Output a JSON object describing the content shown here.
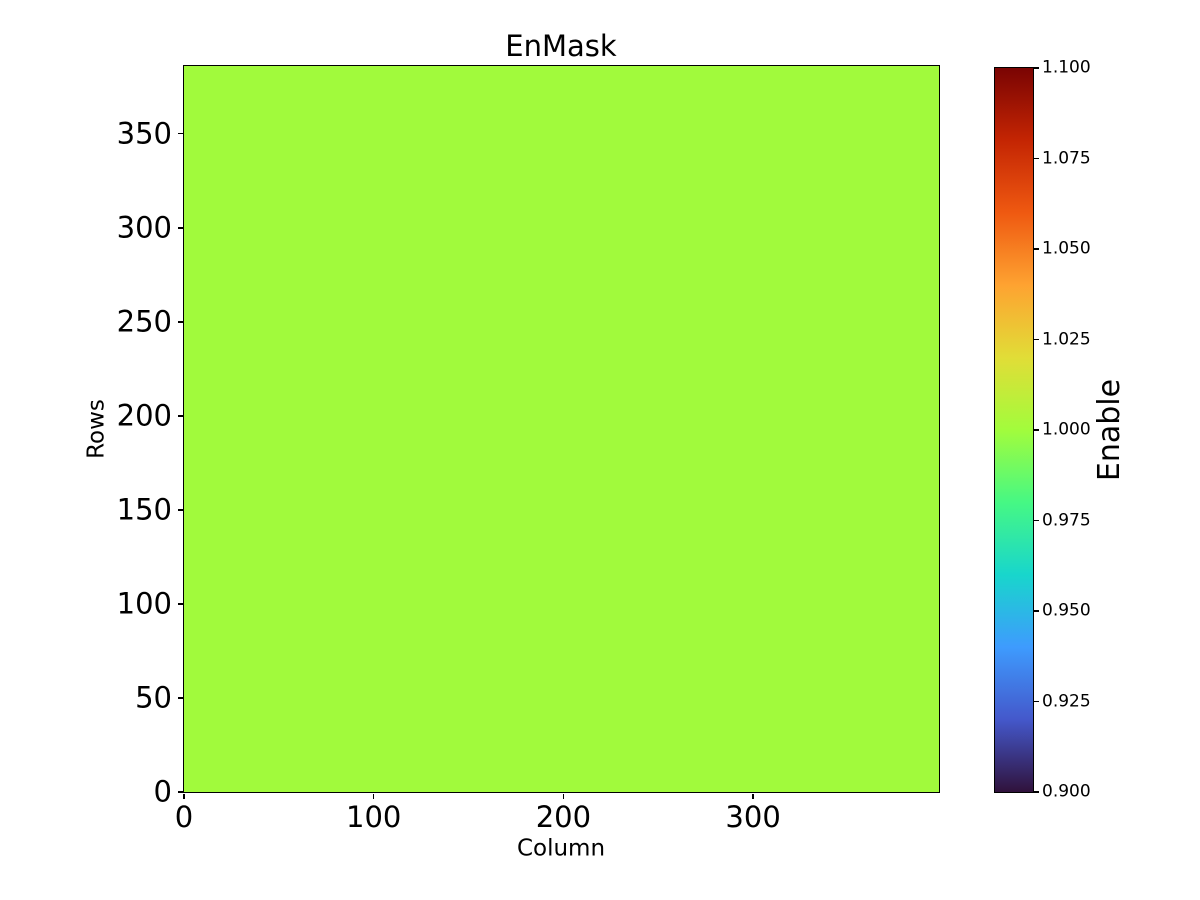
{
  "chart_data": {
    "type": "heatmap",
    "title": "EnMask",
    "xlabel": "Column",
    "ylabel": "Rows",
    "xlim": [
      0,
      398
    ],
    "ylim": [
      0,
      386
    ],
    "x_tick_values": [
      0,
      100,
      200,
      300
    ],
    "x_tick_labels": [
      "0",
      "100",
      "200",
      "300"
    ],
    "y_tick_values": [
      0,
      50,
      100,
      150,
      200,
      250,
      300,
      350
    ],
    "y_tick_labels": [
      "0",
      "50",
      "100",
      "150",
      "200",
      "250",
      "300",
      "350"
    ],
    "uniform_value": 1.0,
    "fill_color": "#A1FA3C",
    "grid": false,
    "colorbar": {
      "label": "Enable",
      "vmin": 0.9,
      "vmax": 1.1,
      "tick_values": [
        0.9,
        0.925,
        0.95,
        0.975,
        1.0,
        1.025,
        1.05,
        1.075,
        1.1
      ],
      "tick_labels": [
        "0.900",
        "0.925",
        "0.950",
        "0.975",
        "1.000",
        "1.025",
        "1.050",
        "1.075",
        "1.100"
      ],
      "colormap": "turbo",
      "colormap_stops": [
        {
          "t": 0.0,
          "color": "#30123B"
        },
        {
          "t": 0.1,
          "color": "#4458CB"
        },
        {
          "t": 0.2,
          "color": "#3E9BFE"
        },
        {
          "t": 0.3,
          "color": "#18D6CC"
        },
        {
          "t": 0.4,
          "color": "#46F884"
        },
        {
          "t": 0.5,
          "color": "#A2FC3C"
        },
        {
          "t": 0.6,
          "color": "#E1DD37"
        },
        {
          "t": 0.7,
          "color": "#FEA331"
        },
        {
          "t": 0.8,
          "color": "#EF5911"
        },
        {
          "t": 0.9,
          "color": "#C42503"
        },
        {
          "t": 1.0,
          "color": "#7A0403"
        }
      ]
    }
  }
}
